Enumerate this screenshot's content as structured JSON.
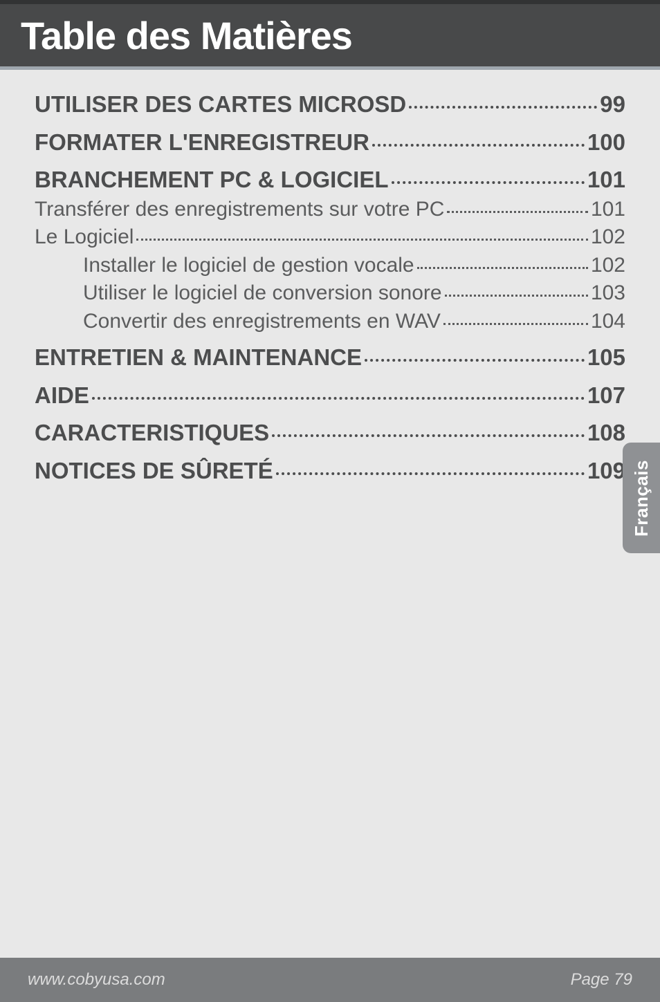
{
  "header": {
    "title": "Table des Matières"
  },
  "toc": [
    {
      "level": 1,
      "label": "UTILISER DES CARTES MICROSD",
      "page": "99"
    },
    {
      "level": 1,
      "label": "FORMATER L'ENREGISTREUR",
      "page": "100"
    },
    {
      "level": 1,
      "label": "BRANCHEMENT PC & LOGICIEL",
      "page": "101"
    },
    {
      "level": 2,
      "label": "Transférer des enregistrements sur votre PC",
      "page": "101"
    },
    {
      "level": 2,
      "label": "Le Logiciel",
      "page": "102"
    },
    {
      "level": 3,
      "label": "Installer le logiciel de gestion vocale",
      "page": "102"
    },
    {
      "level": 3,
      "label": "Utiliser le logiciel de conversion sonore",
      "page": "103"
    },
    {
      "level": 3,
      "label": "Convertir des enregistrements en WAV",
      "page": "104"
    },
    {
      "level": 1,
      "label": "ENTRETIEN & MAINTENANCE",
      "page": "105"
    },
    {
      "level": 1,
      "label": "AIDE",
      "page": "107"
    },
    {
      "level": 1,
      "label": "CARACTERISTIQUES",
      "page": "108"
    },
    {
      "level": 1,
      "label": "NOTICES DE SÛRETÉ",
      "page": "109"
    }
  ],
  "langTab": {
    "label": "Français"
  },
  "footer": {
    "url": "www.cobyusa.com",
    "page": "Page 79"
  },
  "style": {
    "page_bg": "#e8e8e8",
    "header_bg": "#48494a",
    "header_underline": "#9fa7ae",
    "text_primary": "#4c4d4e",
    "text_secondary": "#5b5c5d",
    "tab_bg": "#8f9194",
    "footer_bg": "#7a7c7e",
    "header_title_color": "#ffffff",
    "header_title_fontsize": 56,
    "lvl1_fontsize": 33,
    "lvl2_fontsize": 30,
    "footer_fontsize": 24
  }
}
